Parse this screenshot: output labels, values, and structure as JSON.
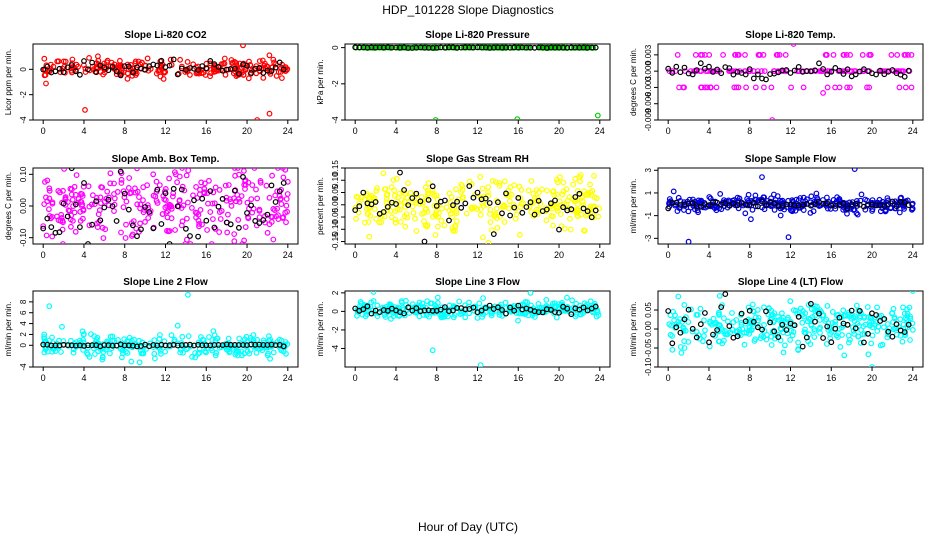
{
  "title": "HDP_101228  Slope Diagnostics",
  "xlabel": "Hour of Day (UTC)",
  "chart_data": [
    {
      "type": "scatter",
      "title": "Slope Li-820 CO2",
      "ylabel": "Licor ppm per min.",
      "ylim": [
        -4,
        2
      ],
      "yticks": [
        "-4",
        "-2",
        "0"
      ],
      "yticks_at": [
        -4,
        -2,
        0
      ],
      "xlim": [
        -1,
        25
      ],
      "xticks": [
        0,
        4,
        8,
        12,
        16,
        20,
        24
      ],
      "color": "#ff0000",
      "mean": 0.1,
      "spread": 0.35,
      "n": 240,
      "outliers": [
        [
          4.1,
          -3.2
        ],
        [
          19.6,
          1.9
        ],
        [
          21,
          -4.1
        ],
        [
          22.2,
          -3.5
        ],
        [
          4.5,
          0.9
        ]
      ],
      "black_spread": 0.25
    },
    {
      "type": "scatter",
      "title": "Slope Li-820 Pressure",
      "ylabel": "kPa per min.",
      "ylim": [
        -4,
        0.2
      ],
      "yticks": [
        "-4",
        "-2",
        "0"
      ],
      "yticks_at": [
        -4,
        -2,
        0
      ],
      "xlim": [
        -1,
        25
      ],
      "xticks": [
        0,
        4,
        8,
        12,
        16,
        20,
        24
      ],
      "color": "#00cc00",
      "mean": 0,
      "spread": 0.01,
      "n": 150,
      "outliers": [
        [
          7.9,
          -4
        ],
        [
          15.9,
          -3.95
        ],
        [
          23.8,
          -3.75
        ]
      ],
      "black_spread": 0.01
    },
    {
      "type": "scatter",
      "title": "Slope Li-820 Temp.",
      "ylabel": "degrees C per min.",
      "ylim": [
        -0.009,
        0.005
      ],
      "yticks": [
        "-0.009",
        "-0.006",
        "-0.003",
        "0.000",
        "0.003"
      ],
      "yticks_at": [
        -0.009,
        -0.006,
        -0.003,
        0,
        0.003
      ],
      "xlim": [
        -1,
        25
      ],
      "xticks": [
        0,
        4,
        8,
        12,
        16,
        20,
        24
      ],
      "color": "#ff00ff",
      "mean": 0,
      "spread": 0,
      "levels": [
        -0.003,
        0,
        0.003
      ],
      "n": 160,
      "outliers": [
        [
          10.2,
          -0.009
        ],
        [
          12.3,
          0.005
        ],
        [
          15.2,
          -0.004
        ]
      ],
      "black_spread": 0.0006
    },
    {
      "type": "scatter",
      "title": "Slope Amb. Box Temp.",
      "ylabel": "degrees C per min.",
      "ylim": [
        -0.12,
        0.12
      ],
      "yticks": [
        "-0.10",
        "0.00",
        "0.10"
      ],
      "yticks_at": [
        -0.1,
        0,
        0.1
      ],
      "xlim": [
        -1,
        25
      ],
      "xticks": [
        0,
        4,
        8,
        12,
        16,
        20,
        24
      ],
      "color": "#ff00ff",
      "mean": 0,
      "spread": 0.06,
      "n": 320,
      "outliers": [],
      "black_spread": 0.05
    },
    {
      "type": "scatter",
      "title": "Slope Gas Stream RH",
      "ylabel": "percent per min.",
      "ylim": [
        -0.16,
        0.15
      ],
      "yticks": [
        "-0.15",
        "-0.10",
        "-0.05",
        "0.00",
        "0.05",
        "0.10",
        "0.15"
      ],
      "yticks_at": [
        -0.15,
        -0.1,
        -0.05,
        0,
        0.05,
        0.1,
        0.15
      ],
      "xlim": [
        -1,
        25
      ],
      "xticks": [
        0,
        4,
        8,
        12,
        16,
        20,
        24
      ],
      "color": "#ffff00",
      "mean": 0,
      "spread": 0.055,
      "n": 320,
      "outliers": [],
      "black_spread": 0.05
    },
    {
      "type": "scatter",
      "title": "Slope Sample Flow",
      "ylabel": "ml/min per min.",
      "ylim": [
        -3.5,
        3.2
      ],
      "yticks": [
        "-3",
        "-1",
        "1",
        "3"
      ],
      "yticks_at": [
        -3,
        -1,
        1,
        3
      ],
      "xlim": [
        -1,
        25
      ],
      "xticks": [
        0,
        4,
        8,
        12,
        16,
        20,
        24
      ],
      "color": "#0000dd",
      "mean": 0,
      "spread": 0.35,
      "n": 300,
      "outliers": [
        [
          2,
          -3.3
        ],
        [
          9.2,
          2.4
        ],
        [
          18.3,
          3.1
        ],
        [
          11.8,
          -2.9
        ]
      ],
      "black_spread": 0.15
    },
    {
      "type": "scatter",
      "title": "Slope Line 2 Flow",
      "ylabel": "ml/min per min.",
      "ylim": [
        -4,
        10
      ],
      "yticks": [
        "-4",
        "0",
        "2",
        "4",
        "6",
        "8"
      ],
      "yticks_at": [
        -4,
        0,
        2,
        4,
        6,
        8
      ],
      "xlim": [
        -1,
        25
      ],
      "xticks": [
        0,
        4,
        8,
        12,
        16,
        20,
        24
      ],
      "color": "#00ffff",
      "mean": 0,
      "spread": 1.0,
      "n": 280,
      "outliers": [
        [
          0.6,
          7.2
        ],
        [
          14.2,
          9.3
        ],
        [
          13.2,
          3.6
        ]
      ],
      "black_spread": 0.08
    },
    {
      "type": "scatter",
      "title": "Slope Line 3 Flow",
      "ylabel": "ml/min per min.",
      "ylim": [
        -6,
        2.2
      ],
      "yticks": [
        "-4",
        "-2",
        "0",
        "2"
      ],
      "yticks_at": [
        -4,
        -2,
        0,
        2
      ],
      "xlim": [
        -1,
        25
      ],
      "xticks": [
        0,
        4,
        8,
        12,
        16,
        20,
        24
      ],
      "color": "#00ffff",
      "mean": 0.2,
      "spread": 0.45,
      "n": 300,
      "outliers": [
        [
          1.8,
          2.1
        ],
        [
          12.3,
          -5.8
        ],
        [
          17.2,
          2.0
        ],
        [
          7.6,
          -4.2
        ]
      ],
      "black_spread": 0.25
    },
    {
      "type": "scatter",
      "title": "Slope Line 4 (LT) Flow",
      "ylabel": "ml/min per min.",
      "ylim": [
        -0.1,
        0.1
      ],
      "yticks": [
        "-0.10",
        "-0.05",
        "0.00",
        "0.05"
      ],
      "yticks_at": [
        -0.1,
        -0.05,
        0,
        0.05
      ],
      "xlim": [
        -1,
        25
      ],
      "xticks": [
        0,
        4,
        8,
        12,
        16,
        20,
        24
      ],
      "color": "#00ffff",
      "mean": 0.01,
      "spread": 0.03,
      "n": 340,
      "outliers": [
        [
          20,
          -0.1
        ],
        [
          24,
          0.1
        ]
      ],
      "black_spread": 0.03
    }
  ]
}
